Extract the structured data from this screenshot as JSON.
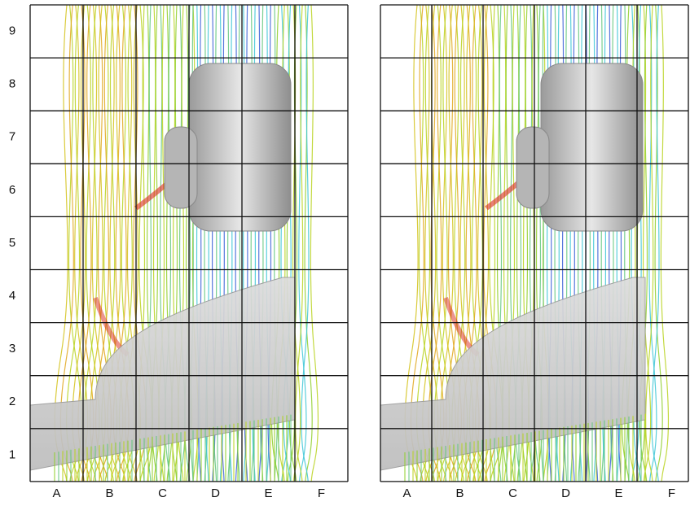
{
  "panels": [
    {
      "rows": [
        "9",
        "8",
        "7",
        "6",
        "5",
        "4",
        "3",
        "2",
        "1"
      ],
      "columns": [
        "A",
        "B",
        "C",
        "D",
        "E",
        "F"
      ]
    },
    {
      "columns": [
        "A",
        "B",
        "C",
        "D",
        "E",
        "F"
      ]
    }
  ]
}
